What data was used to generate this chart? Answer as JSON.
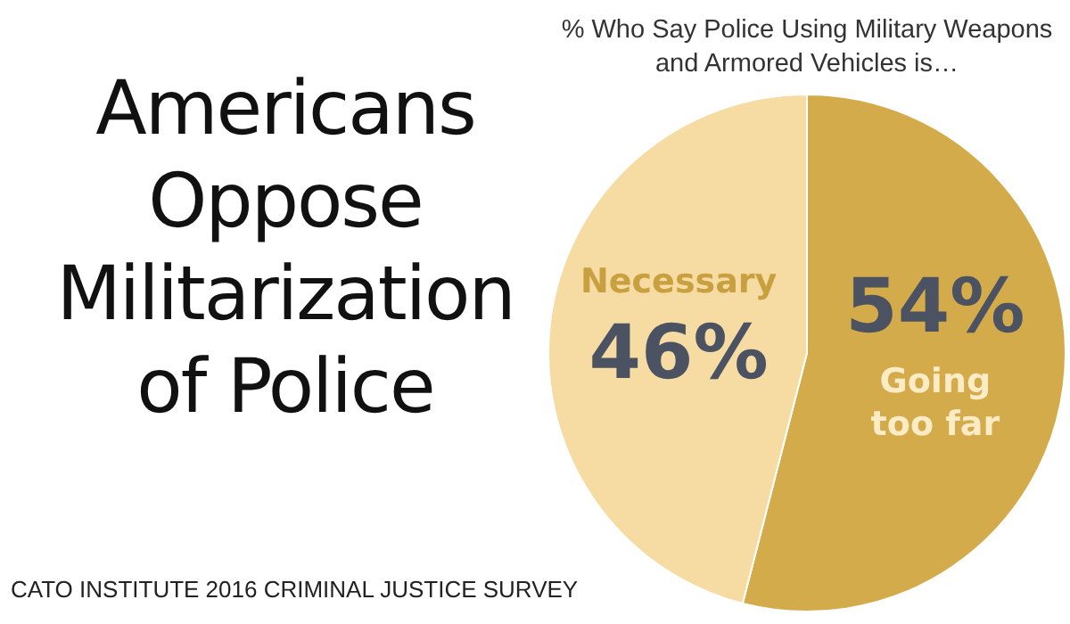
{
  "chart_data": {
    "type": "pie",
    "title": "Americans Oppose Militarization of Police",
    "subtitle": "% Who Say Police Using Military Weapons and Armored Vehicles is…",
    "categories": [
      "Going too far",
      "Necessary"
    ],
    "values": [
      54,
      46
    ],
    "colors": [
      "#d4ab4a",
      "#f6dba3"
    ],
    "value_labels": [
      "54%",
      "46%"
    ],
    "legend": false,
    "annotations": [
      "CATO INSTITUTE 2016 CRIMINAL JUSTICE SURVEY"
    ]
  }
}
